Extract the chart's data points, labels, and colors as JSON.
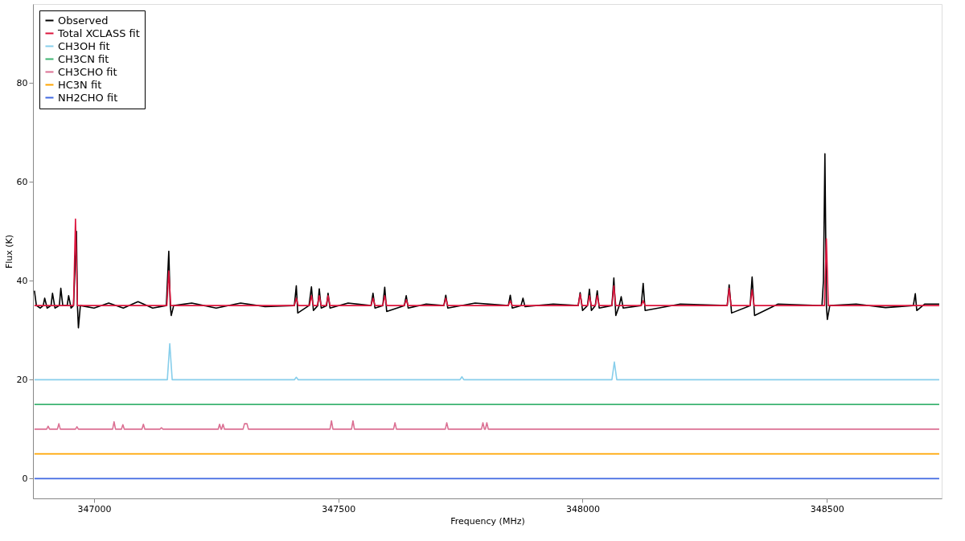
{
  "chart_data": {
    "type": "line",
    "xlabel": "Frequency (MHz)",
    "ylabel": "Flux (K)",
    "xlim": [
      346875,
      348735
    ],
    "ylim": [
      -4,
      96
    ],
    "xticks": [
      347000,
      347500,
      348000,
      348500
    ],
    "yticks": [
      0,
      20,
      40,
      60,
      80
    ],
    "grid": false,
    "legend": "top left",
    "marker": "none",
    "line_style": "solid",
    "series": [
      {
        "name": "Observed",
        "color": "#000000",
        "x": [
          346878,
          346882,
          346890,
          346896,
          346899,
          346904,
          346912,
          346915,
          346920,
          346929,
          346932,
          346936,
          346945,
          346948,
          346953,
          346958,
          346964,
          346966,
          346968,
          346972,
          347000,
          347030,
          347060,
          347090,
          347120,
          347148,
          347153,
          347156,
          347158,
          347163,
          347200,
          347250,
          347300,
          347350,
          347410,
          347414,
          347417,
          347440,
          347445,
          347449,
          347458,
          347461,
          347465,
          347476,
          347479,
          347483,
          347520,
          347567,
          347571,
          347575,
          347591,
          347595,
          347599,
          347635,
          347639,
          347643,
          347680,
          347716,
          347720,
          347724,
          347780,
          347848,
          347852,
          347856,
          347874,
          347878,
          347882,
          347940,
          347991,
          347995,
          348000,
          348010,
          348014,
          348018,
          348026,
          348030,
          348034,
          348060,
          348064,
          348068,
          348075,
          348079,
          348083,
          348120,
          348124,
          348128,
          348200,
          348296,
          348300,
          348305,
          348343,
          348347,
          348352,
          348400,
          348490,
          348493,
          348496,
          348499,
          348501,
          348506,
          348560,
          348620,
          348677,
          348681,
          348684,
          348700,
          348730
        ],
        "values": [
          38,
          35,
          34.5,
          35,
          36.5,
          34.5,
          35,
          37.5,
          34.5,
          35,
          38.5,
          35,
          35,
          37,
          34.5,
          35,
          50,
          35,
          30.5,
          35,
          34.5,
          35.5,
          34.5,
          35.8,
          34.5,
          35,
          46,
          35,
          33,
          35,
          35.5,
          34.5,
          35.5,
          34.8,
          35,
          39,
          33.5,
          35,
          38.8,
          34,
          35,
          38.4,
          34.5,
          35,
          37.5,
          34.5,
          35.5,
          35,
          37.5,
          34.5,
          35,
          38.7,
          33.8,
          35,
          37,
          34.5,
          35.3,
          35,
          37.1,
          34.5,
          35.5,
          35,
          37.1,
          34.5,
          35,
          36.5,
          34.8,
          35.3,
          35,
          37.6,
          34,
          35,
          38.3,
          34,
          35,
          38,
          34.5,
          35,
          40.6,
          33,
          35,
          36.8,
          34.5,
          35,
          39.5,
          34,
          35.3,
          35,
          39.2,
          33.5,
          35,
          40.8,
          33,
          35.3,
          35,
          40,
          65.7,
          35,
          32.2,
          35,
          35.3,
          34.6,
          35,
          37.4,
          34,
          35.3,
          35.3
        ]
      },
      {
        "name": "Total XCLASS fit",
        "color": "#dc143c",
        "x": [
          346878,
          346958,
          346962,
          346966,
          347149,
          347153,
          347157,
          347410,
          347414,
          347418,
          347441,
          347445,
          347449,
          347457,
          347461,
          347465,
          347475,
          347479,
          347483,
          347567,
          347571,
          347575,
          347591,
          347595,
          347599,
          347635,
          347639,
          347643,
          347716,
          347720,
          347724,
          347848,
          347852,
          347856,
          347991,
          347995,
          347999,
          348010,
          348014,
          348018,
          348026,
          348030,
          348034,
          348060,
          348064,
          348068,
          348120,
          348124,
          348128,
          348296,
          348300,
          348304,
          348343,
          348347,
          348351,
          348495,
          348499,
          348503,
          348730
        ],
        "values": [
          35,
          35,
          52.5,
          35,
          35,
          42,
          35,
          35,
          36.5,
          35,
          35,
          37,
          35,
          35,
          37,
          35,
          35,
          37,
          35,
          35,
          36.5,
          35,
          35,
          37,
          35,
          35,
          36.2,
          35,
          35,
          36.5,
          35,
          35,
          36,
          35,
          35,
          37.3,
          35,
          35,
          37,
          35,
          35,
          37,
          35,
          35,
          39,
          35,
          35,
          36,
          35,
          35,
          38.5,
          35,
          35,
          38.2,
          35,
          35,
          48.5,
          35,
          35
        ]
      },
      {
        "name": "CH3OH fit",
        "color": "#87ceeb",
        "x": [
          346878,
          347150,
          347155,
          347160,
          347410,
          347414,
          347418,
          347749,
          347753,
          347757,
          348060,
          348065,
          348070,
          348730
        ],
        "values": [
          20,
          20,
          27.3,
          20,
          20,
          20.5,
          20,
          20,
          20.6,
          20,
          20,
          23.6,
          20,
          20
        ]
      },
      {
        "name": "CH3CN fit",
        "color": "#3cb371",
        "x": [
          346878,
          348730
        ],
        "values": [
          15,
          15
        ]
      },
      {
        "name": "CH3CHO fit",
        "color": "#db7093",
        "x": [
          346878,
          346903,
          346906,
          346909,
          346925,
          346928,
          346931,
          346962,
          346965,
          346968,
          347038,
          347041,
          347044,
          347056,
          347059,
          347062,
          347098,
          347101,
          347104,
          347135,
          347138,
          347141,
          347254,
          347257,
          347260,
          347261,
          347264,
          347267,
          347305,
          347308,
          347311,
          347313,
          347316,
          347483,
          347486,
          347489,
          347527,
          347530,
          347533,
          347613,
          347616,
          347619,
          347719,
          347722,
          347725,
          347793,
          347796,
          347799,
          347801,
          347804,
          347807,
          348730
        ],
        "values": [
          10,
          10,
          10.6,
          10,
          10,
          11.1,
          10,
          10,
          10.5,
          10,
          10,
          11.5,
          10,
          10,
          10.9,
          10,
          10,
          11,
          10,
          10,
          10.3,
          10,
          10,
          11,
          10,
          10,
          11,
          10,
          10,
          11.1,
          11.1,
          11.1,
          10,
          10,
          11.7,
          10,
          10,
          11.7,
          10,
          10,
          11.3,
          10,
          10,
          11.3,
          10,
          10,
          11.3,
          10,
          10,
          11.3,
          10,
          10
        ]
      },
      {
        "name": "HC3N fit",
        "color": "#ffa500",
        "x": [
          346878,
          348730
        ],
        "values": [
          5,
          5
        ]
      },
      {
        "name": "NH2CHO fit",
        "color": "#4169e1",
        "x": [
          346878,
          348730
        ],
        "values": [
          0,
          0
        ]
      }
    ]
  }
}
